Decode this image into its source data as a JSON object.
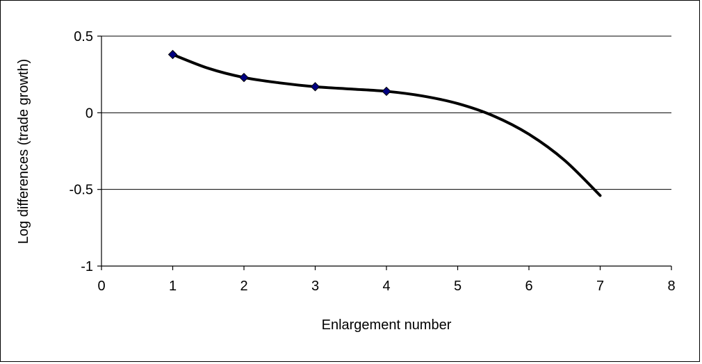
{
  "chart_data": {
    "type": "scatter",
    "title": "",
    "xlabel": "Enlargement number",
    "ylabel": "Log differences (trade growth)",
    "xlim": [
      0,
      8
    ],
    "ylim": [
      -1,
      0.5
    ],
    "x_ticks": [
      0,
      1,
      2,
      3,
      4,
      5,
      6,
      7,
      8
    ],
    "y_ticks": [
      0.5,
      0,
      -0.5,
      -1
    ],
    "x_tick_labels": [
      "0",
      "1",
      "2",
      "3",
      "4",
      "5",
      "6",
      "7",
      "8"
    ],
    "y_tick_labels": [
      "0.5",
      "0",
      "-0.5",
      "-1"
    ],
    "grid": "horizontal",
    "legend": "none",
    "series": [
      {
        "marker": "diamond",
        "color": "#000080",
        "points": [
          {
            "x": 1,
            "y": 0.38
          },
          {
            "x": 2,
            "y": 0.23
          },
          {
            "x": 3,
            "y": 0.17
          },
          {
            "x": 4,
            "y": 0.14
          }
        ]
      }
    ],
    "trendline": {
      "type": "polynomial",
      "color": "#000000",
      "x_range": [
        1,
        7
      ],
      "points": [
        {
          "x": 1,
          "y": 0.38
        },
        {
          "x": 1.5,
          "y": 0.29
        },
        {
          "x": 2,
          "y": 0.23
        },
        {
          "x": 2.5,
          "y": 0.195
        },
        {
          "x": 3,
          "y": 0.17
        },
        {
          "x": 3.5,
          "y": 0.155
        },
        {
          "x": 4,
          "y": 0.14
        },
        {
          "x": 4.5,
          "y": 0.11
        },
        {
          "x": 5,
          "y": 0.06
        },
        {
          "x": 5.5,
          "y": -0.02
        },
        {
          "x": 6,
          "y": -0.14
        },
        {
          "x": 6.5,
          "y": -0.31
        },
        {
          "x": 7,
          "y": -0.54
        }
      ]
    }
  }
}
